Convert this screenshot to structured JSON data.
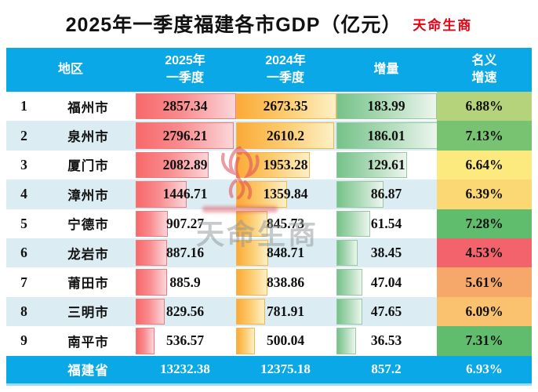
{
  "title": "2025年一季度福建各市GDP（亿元）",
  "brand": "天命生商",
  "watermark": {
    "text": "天命生商"
  },
  "colors": {
    "header_bg": "#0aa8e6",
    "alt_row_bg": "#dcecf3",
    "brand_red": "#e60012",
    "bar_2025_gradient": [
      "#f8696b",
      "#fbd6d9"
    ],
    "bar_2024_gradient": [
      "#fbaa37",
      "#fdf0c5"
    ],
    "bar_increment_gradient": [
      "#76c289",
      "#edf5ee"
    ]
  },
  "chart_data": {
    "type": "table",
    "title": "2025年一季度福建各市GDP（亿元）",
    "unit": "亿元",
    "columns": [
      "地区",
      "2025年一季度",
      "2024年一季度",
      "增量",
      "名义增速"
    ],
    "header_labels": {
      "region": "地区",
      "q1_2025": "2025年\n一季度",
      "q1_2024": "2024年\n一季度",
      "increment": "增量",
      "growth": "名义\n增速"
    },
    "bars_note": "cell data bars scaled linearly to column max",
    "rows": [
      {
        "rank": "1",
        "city": "福州市",
        "q1_2025": "2857.34",
        "q1_2024": "2673.35",
        "increment": "183.99",
        "growth": "6.88%",
        "growth_color": "#b5d37b"
      },
      {
        "rank": "2",
        "city": "泉州市",
        "q1_2025": "2796.21",
        "q1_2024": "2610.2",
        "increment": "186.01",
        "growth": "7.13%",
        "growth_color": "#77c372"
      },
      {
        "rank": "3",
        "city": "厦门市",
        "q1_2025": "2082.89",
        "q1_2024": "1953.28",
        "increment": "129.61",
        "growth": "6.64%",
        "growth_color": "#fdea7e"
      },
      {
        "rank": "4",
        "city": "漳州市",
        "q1_2025": "1446.71",
        "q1_2024": "1359.84",
        "increment": "86.87",
        "growth": "6.39%",
        "growth_color": "#fbd873"
      },
      {
        "rank": "5",
        "city": "宁德市",
        "q1_2025": "907.27",
        "q1_2024": "845.73",
        "increment": "61.54",
        "growth": "7.28%",
        "growth_color": "#5fbd6d"
      },
      {
        "rank": "6",
        "city": "龙岩市",
        "q1_2025": "887.16",
        "q1_2024": "848.71",
        "increment": "38.45",
        "growth": "4.53%",
        "growth_color": "#f2636b"
      },
      {
        "rank": "7",
        "city": "莆田市",
        "q1_2025": "885.9",
        "q1_2024": "838.86",
        "increment": "47.04",
        "growth": "5.61%",
        "growth_color": "#f6a76a"
      },
      {
        "rank": "8",
        "city": "三明市",
        "q1_2025": "829.56",
        "q1_2024": "781.91",
        "increment": "47.65",
        "growth": "6.09%",
        "growth_color": "#fac26e"
      },
      {
        "rank": "9",
        "city": "南平市",
        "q1_2025": "536.57",
        "q1_2024": "500.04",
        "increment": "36.53",
        "growth": "7.31%",
        "growth_color": "#5fbd6d"
      }
    ],
    "total": {
      "city": "福建省",
      "q1_2025": "13232.38",
      "q1_2024": "12375.18",
      "increment": "857.2",
      "growth": "6.93%"
    }
  }
}
